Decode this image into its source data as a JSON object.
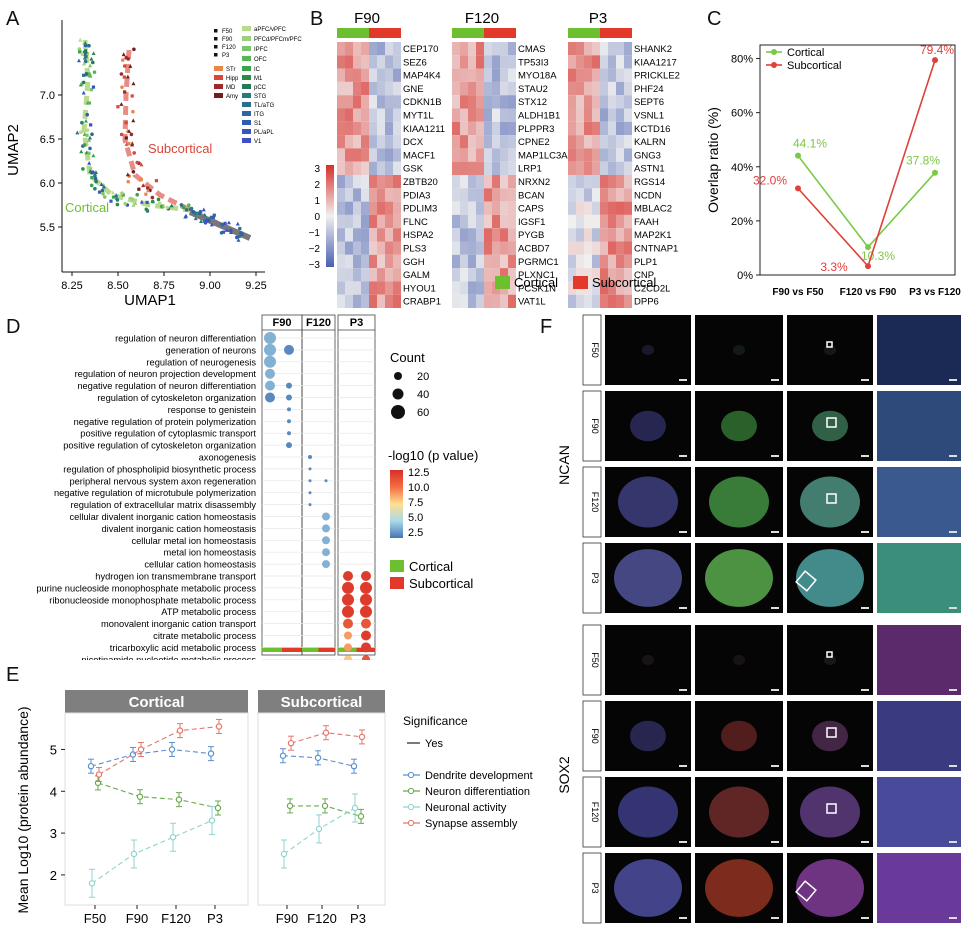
{
  "panel_labels": [
    "A",
    "B",
    "C",
    "D",
    "E",
    "F"
  ],
  "panelA": {
    "xlabel": "UMAP1",
    "ylabel": "UMAP2",
    "xticks": [
      "8.25",
      "8.50",
      "8.75",
      "9.00",
      "9.25"
    ],
    "yticks": [
      "7.0",
      "6.5",
      "6.0",
      "5.5"
    ],
    "legend_ages": [
      "F50",
      "F90",
      "F120",
      "P3"
    ],
    "legend_regions": [
      {
        "name": "STr",
        "color": "#e9874a"
      },
      {
        "name": "Hipp",
        "color": "#d9473a"
      },
      {
        "name": "MD",
        "color": "#9c2a2a"
      },
      {
        "name": "Amy",
        "color": "#6e1f1f"
      },
      {
        "name": "aPFC/vPFC",
        "color": "#b9dc8c"
      },
      {
        "name": "PFCd/PFCm/PFC",
        "color": "#9bd07d"
      },
      {
        "name": "IPFC",
        "color": "#7cc36a"
      },
      {
        "name": "OFC",
        "color": "#59b357"
      },
      {
        "name": "IC",
        "color": "#3ea24d"
      },
      {
        "name": "M1",
        "color": "#2b8c4a"
      },
      {
        "name": "pCC",
        "color": "#227a56"
      },
      {
        "name": "STG",
        "color": "#277b7a"
      },
      {
        "name": "TL/aTG",
        "color": "#2b6f8f"
      },
      {
        "name": "ITG",
        "color": "#2e66a4"
      },
      {
        "name": "S1",
        "color": "#2f5cb3"
      },
      {
        "name": "PL/aPL",
        "color": "#3356bf"
      },
      {
        "name": "V1",
        "color": "#3f4fc8"
      }
    ],
    "annotations": {
      "subcortical": "Subcortical",
      "cortical": "Cortical"
    }
  },
  "panelB": {
    "groups": [
      {
        "title": "F90",
        "genes": [
          "CEP170",
          "SEZ6",
          "MAP4K4",
          "GNE",
          "CDKN1B",
          "MYT1L",
          "KIAA1211",
          "DCX",
          "MACF1",
          "GSK",
          "ZBTB20",
          "PDIA3",
          "PDLIM3",
          "FLNC",
          "HSPA2",
          "PLS3",
          "GGH",
          "GALM",
          "HYOU1",
          "CRABP1"
        ]
      },
      {
        "title": "F120",
        "genes": [
          "CMAS",
          "TP53I3",
          "MYO18A",
          "STAU2",
          "STX12",
          "ALDH1B1",
          "PLPPR3",
          "CPNE2",
          "MAP1LC3A",
          "LRP1",
          "NRXN2",
          "BCAN",
          "CAPS",
          "IGSF1",
          "PYGB",
          "ACBD7",
          "PGRMC1",
          "PLXNC1",
          "PCSK1N",
          "VAT1L"
        ]
      },
      {
        "title": "P3",
        "genes": [
          "SHANK2",
          "KIAA1217",
          "PRICKLE2",
          "PHF24",
          "SEPT6",
          "VSNL1",
          "KCTD16",
          "KALRN",
          "GNG3",
          "ASTN1",
          "RGS14",
          "NCDN",
          "MBLAC2",
          "FAAH",
          "MAP2K1",
          "CNTNAP1",
          "PLP1",
          "CNP",
          "C2CD2L",
          "DPP6"
        ]
      }
    ],
    "scale_ticks": [
      "3",
      "2",
      "1",
      "0",
      "−1",
      "−2",
      "−3"
    ],
    "legend": [
      {
        "name": "Cortical",
        "color": "#6cbf2e"
      },
      {
        "name": "Subcortical",
        "color": "#e2392b"
      }
    ]
  },
  "panelC": {
    "chart_data": {
      "type": "line",
      "categories": [
        "F90 vs F50",
        "F120 vs F90",
        "P3 vs F120"
      ],
      "series": [
        {
          "name": "Cortical",
          "color": "#7ac943",
          "values": [
            44.1,
            10.3,
            37.8
          ],
          "labels": [
            "44.1%",
            "10.3%",
            "37.8%"
          ]
        },
        {
          "name": "Subcortical",
          "color": "#e0403a",
          "values": [
            32.0,
            3.3,
            79.4
          ],
          "labels": [
            "32.0%",
            "3.3%",
            "79.4%"
          ]
        }
      ],
      "ylabel": "Overlap ratio (%)",
      "yticks": [
        "0%",
        "20%",
        "40%",
        "60%",
        "80%"
      ],
      "ylim": [
        0,
        85
      ],
      "legend_position": "top-left"
    }
  },
  "panelD": {
    "columns": [
      "F90",
      "F120",
      "P3"
    ],
    "terms": [
      "regulation of neuron differentiation",
      "generation of neurons",
      "regulation of neurogenesis",
      "regulation of neuron projection development",
      "negative regulation of neuron differentiation",
      "regulation of cytoskeleton organization",
      "response to genistein",
      "negative regulation of protein polymerization",
      "positive regulation of cytoplasmic transport",
      "positive regulation of cytoskeleton organization",
      "axonogenesis",
      "regulation of phospholipid biosynthetic process",
      "peripheral nervous system axon regeneration",
      "negative regulation of microtubule polymerization",
      "regulation of extracellular matrix disassembly",
      "cellular divalent inorganic cation homeostasis",
      "divalent inorganic cation homeostasis",
      "cellular metal ion homeostasis",
      "metal ion homeostasis",
      "cellular cation homeostasis",
      "hydrogen ion transmembrane transport",
      "purine nucleoside monophosphate metabolic process",
      "ribonucleoside monophosphate metabolic process",
      "ATP metabolic process",
      "monovalent inorganic cation transport",
      "citrate metabolic process",
      "tricarboxylic acid metabolic process",
      "nicotinamide nucleotide metabolic process"
    ],
    "count_title": "Count",
    "count_values": [
      "20",
      "40",
      "60"
    ],
    "pval_title": "-log10 (p value)",
    "pval_ticks": [
      "12.5",
      "10.0",
      "7.5",
      "5.0",
      "2.5"
    ],
    "legend": [
      {
        "name": "Cortical",
        "color": "#6cbf2e"
      },
      {
        "name": "Subcortical",
        "color": "#e2392b"
      }
    ]
  },
  "panelE": {
    "facets": [
      "Cortical",
      "Subcortical"
    ],
    "ylabel": "Mean Log10 (protein abundance)",
    "yticks": [
      "5",
      "4",
      "3",
      "2"
    ],
    "xticks_cortical": [
      "F50",
      "F90",
      "F120",
      "P3"
    ],
    "xticks_subcortical": [
      "F90",
      "F120",
      "P3"
    ],
    "significance_title": "Significance",
    "significance_value": "Yes",
    "chart_data": [
      {
        "type": "line",
        "facet": "Cortical",
        "categories": [
          "F50",
          "F90",
          "F120",
          "P3"
        ],
        "series": [
          {
            "name": "Dendrite development",
            "color": "#5b8fd0",
            "values": [
              4.6,
              4.88,
              5.0,
              4.9
            ]
          },
          {
            "name": "Neuron differentiation",
            "color": "#6aa84f",
            "values": [
              4.2,
              3.87,
              3.8,
              3.6
            ]
          },
          {
            "name": "Neuronal activity",
            "color": "#8fd3cf",
            "values": [
              1.8,
              2.5,
              2.9,
              3.3
            ]
          },
          {
            "name": "Synapse assembly",
            "color": "#e3766a",
            "values": [
              4.4,
              5.0,
              5.45,
              5.55
            ]
          }
        ]
      },
      {
        "type": "line",
        "facet": "Subcortical",
        "categories": [
          "F90",
          "F120",
          "P3"
        ],
        "series": [
          {
            "name": "Dendrite development",
            "color": "#5b8fd0",
            "values": [
              4.85,
              4.8,
              4.6
            ]
          },
          {
            "name": "Neuron differentiation",
            "color": "#6aa84f",
            "values": [
              3.65,
              3.65,
              3.4
            ]
          },
          {
            "name": "Neuronal activity",
            "color": "#8fd3cf",
            "values": [
              2.5,
              3.1,
              3.6
            ]
          },
          {
            "name": "Synapse assembly",
            "color": "#e3766a",
            "values": [
              5.15,
              5.4,
              5.3
            ]
          }
        ]
      }
    ]
  },
  "panelF": {
    "markers": [
      "NCAN",
      "SOX2"
    ],
    "rows": [
      "F50",
      "F90",
      "F120",
      "P3"
    ]
  }
}
